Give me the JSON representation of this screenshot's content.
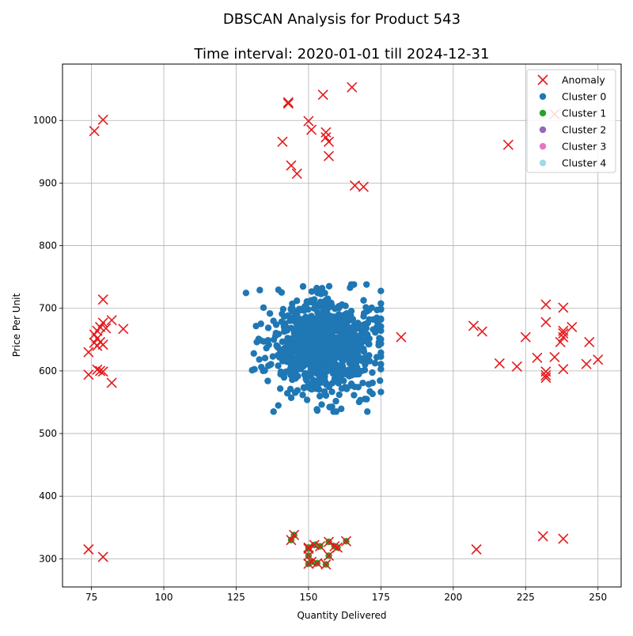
{
  "chart_data": {
    "type": "scatter",
    "title": "DBSCAN Analysis for Product 543",
    "subtitle": "Time interval: 2020-01-01 till 2024-12-31",
    "xlabel": "Quantity Delivered",
    "ylabel": "Price Per Unit",
    "xlim": [
      65,
      258
    ],
    "ylim": [
      255,
      1090
    ],
    "xticks": [
      75,
      100,
      125,
      150,
      175,
      200,
      225,
      250
    ],
    "yticks": [
      300,
      400,
      500,
      600,
      700,
      800,
      900,
      1000
    ],
    "grid": true,
    "legend_position": "top-right",
    "legend": [
      {
        "label": "Anomaly",
        "marker": "x",
        "color": "#e41a1c"
      },
      {
        "label": "Cluster 0",
        "marker": "circle",
        "color": "#1f77b4"
      },
      {
        "label": "Cluster 1",
        "marker": "circle",
        "color": "#2ca02c"
      },
      {
        "label": "Cluster 2",
        "marker": "circle",
        "color": "#9467bd"
      },
      {
        "label": "Cluster 3",
        "marker": "circle",
        "color": "#e377c2"
      },
      {
        "label": "Cluster 4",
        "marker": "circle",
        "color": "#9edae5"
      }
    ],
    "cluster_0": {
      "color": "#1f77b4",
      "center": [
        155,
        640
      ],
      "spread": [
        9,
        38
      ],
      "approx_count": 900,
      "extent_x": [
        125,
        175
      ],
      "extent_y": [
        535,
        738
      ]
    },
    "cluster_1_points": [
      [
        145,
        338
      ],
      [
        144,
        330
      ],
      [
        150,
        318
      ],
      [
        152,
        322
      ],
      [
        157,
        327
      ],
      [
        160,
        318
      ],
      [
        163,
        328
      ],
      [
        150,
        305
      ],
      [
        151,
        295
      ],
      [
        150,
        292
      ],
      [
        153,
        293
      ],
      [
        156,
        291
      ],
      [
        157,
        305
      ],
      [
        150,
        316
      ],
      [
        154,
        320
      ],
      [
        159,
        320
      ]
    ],
    "anomaly_points": [
      [
        155,
        1041
      ],
      [
        165,
        1053
      ],
      [
        143,
        1029
      ],
      [
        143,
        1027
      ],
      [
        79,
        1001
      ],
      [
        76,
        983
      ],
      [
        150,
        999
      ],
      [
        151,
        985
      ],
      [
        156,
        981
      ],
      [
        156,
        973
      ],
      [
        157,
        966
      ],
      [
        141,
        966
      ],
      [
        157,
        943
      ],
      [
        144,
        928
      ],
      [
        146,
        915
      ],
      [
        166,
        896
      ],
      [
        169,
        894
      ],
      [
        219,
        961
      ],
      [
        235,
        1010
      ],
      [
        79,
        714
      ],
      [
        82,
        681
      ],
      [
        86,
        667
      ],
      [
        79,
        677
      ],
      [
        78,
        670
      ],
      [
        80,
        668
      ],
      [
        77,
        664
      ],
      [
        76,
        658
      ],
      [
        77,
        652
      ],
      [
        78,
        646
      ],
      [
        76,
        645
      ],
      [
        79,
        642
      ],
      [
        77,
        640
      ],
      [
        74,
        630
      ],
      [
        77,
        602
      ],
      [
        78,
        600
      ],
      [
        79,
        599
      ],
      [
        74,
        594
      ],
      [
        82,
        581
      ],
      [
        182,
        654
      ],
      [
        207,
        672
      ],
      [
        210,
        663
      ],
      [
        216,
        612
      ],
      [
        222,
        607
      ],
      [
        225,
        654
      ],
      [
        229,
        621
      ],
      [
        232,
        706
      ],
      [
        232,
        678
      ],
      [
        232,
        599
      ],
      [
        232,
        593
      ],
      [
        232,
        589
      ],
      [
        235,
        622
      ],
      [
        237,
        646
      ],
      [
        238,
        664
      ],
      [
        238,
        660
      ],
      [
        238,
        654
      ],
      [
        238,
        701
      ],
      [
        238,
        603
      ],
      [
        241,
        670
      ],
      [
        246,
        611
      ],
      [
        247,
        646
      ],
      [
        250,
        618
      ],
      [
        145,
        338
      ],
      [
        144,
        330
      ],
      [
        150,
        318
      ],
      [
        152,
        322
      ],
      [
        157,
        327
      ],
      [
        160,
        318
      ],
      [
        163,
        328
      ],
      [
        150,
        305
      ],
      [
        151,
        295
      ],
      [
        150,
        292
      ],
      [
        153,
        293
      ],
      [
        156,
        291
      ],
      [
        157,
        305
      ],
      [
        150,
        316
      ],
      [
        154,
        320
      ],
      [
        159,
        320
      ],
      [
        74,
        315
      ],
      [
        79,
        303
      ],
      [
        208,
        315
      ],
      [
        231,
        336
      ],
      [
        238,
        332
      ]
    ]
  }
}
